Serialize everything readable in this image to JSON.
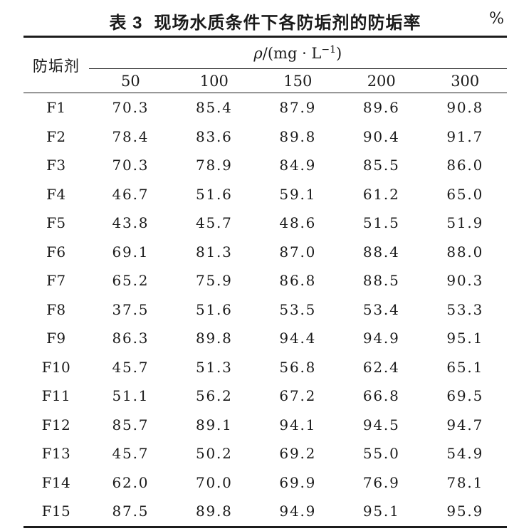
{
  "caption": {
    "label": "表 3",
    "title": "现场水质条件下各防垢剂的防垢率",
    "unit": "%"
  },
  "table": {
    "col1_header": "防垢剂",
    "conc_header": {
      "rho": "ρ",
      "after_rho": "/(mg · L",
      "sup": "−1",
      "suffix": ")"
    },
    "concentrations": [
      "50",
      "100",
      "150",
      "200",
      "300"
    ],
    "rows": [
      {
        "name": "F1",
        "values": [
          "70.3",
          "85.4",
          "87.9",
          "89.6",
          "90.8"
        ]
      },
      {
        "name": "F2",
        "values": [
          "78.4",
          "83.6",
          "89.8",
          "90.4",
          "91.7"
        ]
      },
      {
        "name": "F3",
        "values": [
          "70.3",
          "78.9",
          "84.9",
          "85.5",
          "86.0"
        ]
      },
      {
        "name": "F4",
        "values": [
          "46.7",
          "51.6",
          "59.1",
          "61.2",
          "65.0"
        ]
      },
      {
        "name": "F5",
        "values": [
          "43.8",
          "45.7",
          "48.6",
          "51.5",
          "51.9"
        ]
      },
      {
        "name": "F6",
        "values": [
          "69.1",
          "81.3",
          "87.0",
          "88.4",
          "88.0"
        ]
      },
      {
        "name": "F7",
        "values": [
          "65.2",
          "75.9",
          "86.8",
          "88.5",
          "90.3"
        ]
      },
      {
        "name": "F8",
        "values": [
          "37.5",
          "51.6",
          "53.5",
          "53.4",
          "53.3"
        ]
      },
      {
        "name": "F9",
        "values": [
          "86.3",
          "89.8",
          "94.4",
          "94.9",
          "95.1"
        ]
      },
      {
        "name": "F10",
        "values": [
          "45.7",
          "51.3",
          "56.8",
          "62.4",
          "65.1"
        ]
      },
      {
        "name": "F11",
        "values": [
          "51.1",
          "56.2",
          "67.2",
          "66.8",
          "69.5"
        ]
      },
      {
        "name": "F12",
        "values": [
          "85.7",
          "89.1",
          "94.1",
          "94.5",
          "94.7"
        ]
      },
      {
        "name": "F13",
        "values": [
          "45.7",
          "50.2",
          "69.2",
          "55.0",
          "54.9"
        ]
      },
      {
        "name": "F14",
        "values": [
          "62.0",
          "70.0",
          "69.9",
          "76.9",
          "78.1"
        ]
      },
      {
        "name": "F15",
        "values": [
          "87.5",
          "89.8",
          "94.9",
          "95.1",
          "95.9"
        ]
      }
    ]
  },
  "chart_data": {
    "type": "table",
    "title": "表 3 现场水质条件下各防垢剂的防垢率 %",
    "columns": [
      "防垢剂",
      "50",
      "100",
      "150",
      "200",
      "300"
    ],
    "column_group_label": "ρ/(mg · L⁻¹)",
    "rows": [
      [
        "F1",
        70.3,
        85.4,
        87.9,
        89.6,
        90.8
      ],
      [
        "F2",
        78.4,
        83.6,
        89.8,
        90.4,
        91.7
      ],
      [
        "F3",
        70.3,
        78.9,
        84.9,
        85.5,
        86.0
      ],
      [
        "F4",
        46.7,
        51.6,
        59.1,
        61.2,
        65.0
      ],
      [
        "F5",
        43.8,
        45.7,
        48.6,
        51.5,
        51.9
      ],
      [
        "F6",
        69.1,
        81.3,
        87.0,
        88.4,
        88.0
      ],
      [
        "F7",
        65.2,
        75.9,
        86.8,
        88.5,
        90.3
      ],
      [
        "F8",
        37.5,
        51.6,
        53.5,
        53.4,
        53.3
      ],
      [
        "F9",
        86.3,
        89.8,
        94.4,
        94.9,
        95.1
      ],
      [
        "F10",
        45.7,
        51.3,
        56.8,
        62.4,
        65.1
      ],
      [
        "F11",
        51.1,
        56.2,
        67.2,
        66.8,
        69.5
      ],
      [
        "F12",
        85.7,
        89.1,
        94.1,
        94.5,
        94.7
      ],
      [
        "F13",
        45.7,
        50.2,
        69.2,
        55.0,
        54.9
      ],
      [
        "F14",
        62.0,
        70.0,
        69.9,
        76.9,
        78.1
      ],
      [
        "F15",
        87.5,
        89.8,
        94.9,
        95.1,
        95.9
      ]
    ]
  }
}
